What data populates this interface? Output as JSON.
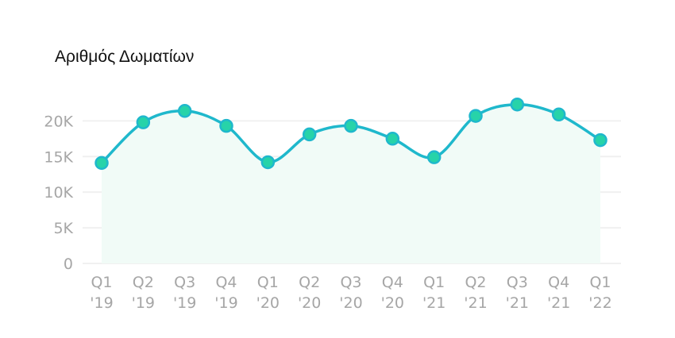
{
  "chart_data": {
    "type": "area",
    "title": "Αριθμός Δωματίων",
    "xlabel": "",
    "ylabel": "",
    "categories": [
      [
        "Q1",
        "'19"
      ],
      [
        "Q2",
        "'19"
      ],
      [
        "Q3",
        "'19"
      ],
      [
        "Q4",
        "'19"
      ],
      [
        "Q1",
        "'20"
      ],
      [
        "Q2",
        "'20"
      ],
      [
        "Q3",
        "'20"
      ],
      [
        "Q4",
        "'20"
      ],
      [
        "Q1",
        "'21"
      ],
      [
        "Q2",
        "'21"
      ],
      [
        "Q3",
        "'21"
      ],
      [
        "Q4",
        "'21"
      ],
      [
        "Q1",
        "'22"
      ]
    ],
    "values": [
      14100,
      19800,
      21400,
      19300,
      14200,
      18100,
      19300,
      17500,
      14900,
      20700,
      22300,
      20900,
      17300
    ],
    "ylim": [
      0,
      22600
    ],
    "yticks": [
      0,
      5000,
      10000,
      15000,
      20000
    ],
    "ytick_labels": [
      "0",
      "5K",
      "10K",
      "15K",
      "20K"
    ],
    "grid": true,
    "legend": "none",
    "colors": {
      "line": "#1fb8cc",
      "marker_fill": "#27d3a9",
      "marker_stroke": "#1fb8cc",
      "area": "#f1fbf7",
      "grid": "#f0f0f0",
      "tick_text": "#a6a6a6"
    }
  }
}
